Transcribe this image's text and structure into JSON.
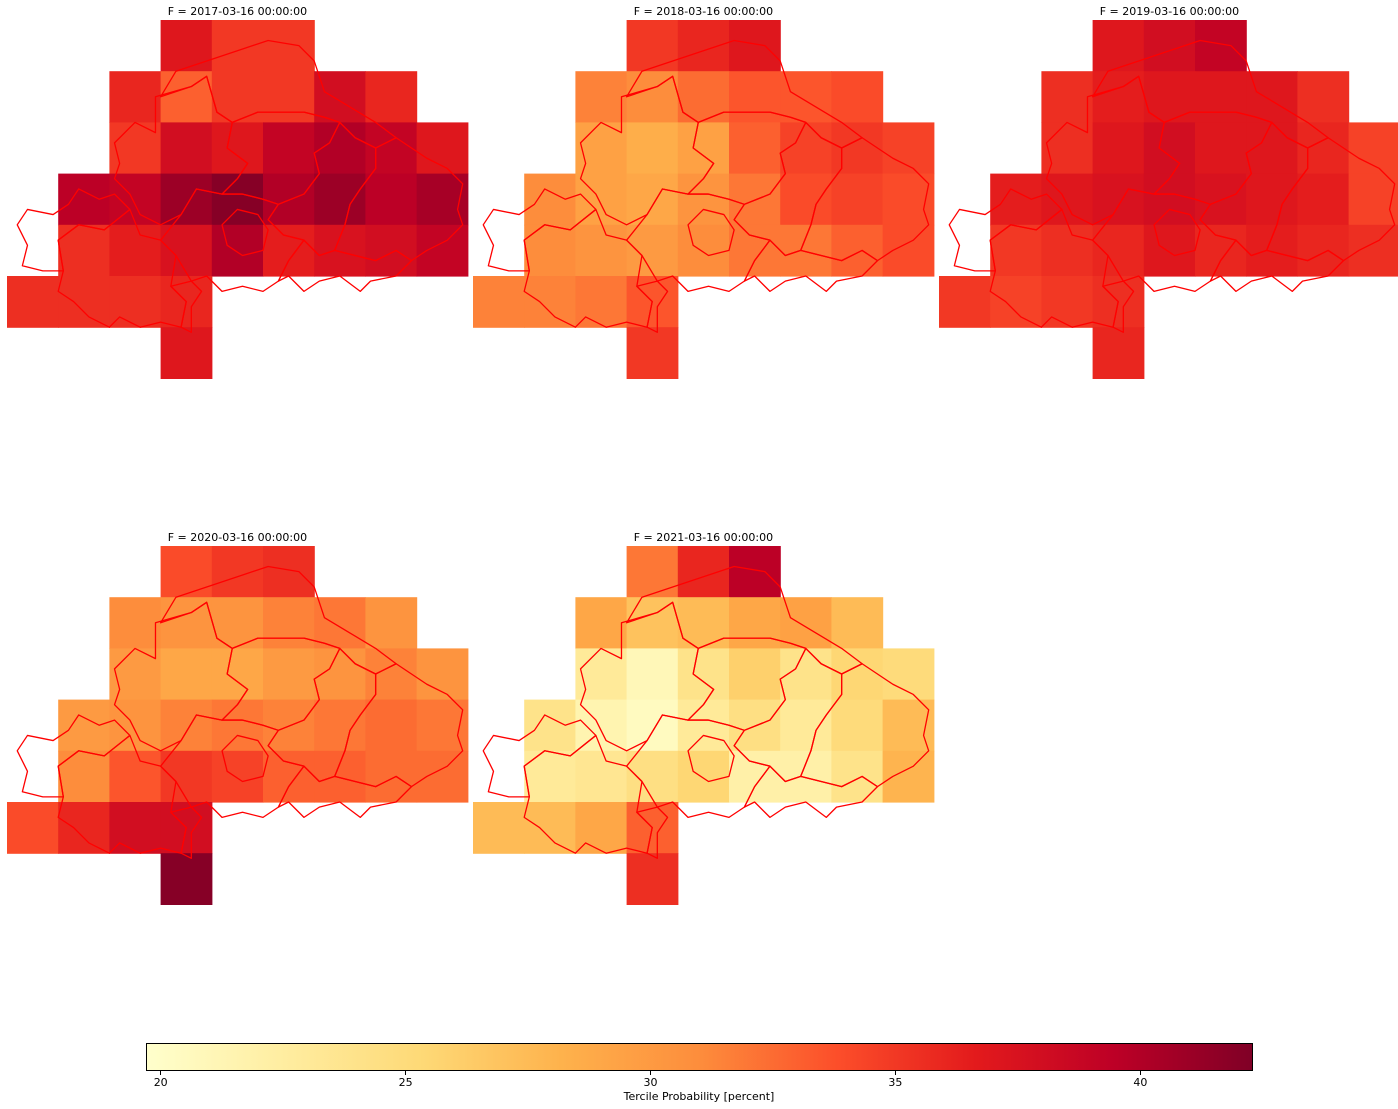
{
  "panels": [
    {
      "title": "F = 2017-03-16 00:00:00",
      "grid": [
        [
          null,
          null,
          null,
          37.0,
          35.0,
          35.0,
          null,
          null,
          null
        ],
        [
          null,
          null,
          36.0,
          33.0,
          35.0,
          35.0,
          38.0,
          36.0,
          null
        ],
        [
          null,
          null,
          35.0,
          38.0,
          37.0,
          39.0,
          40.0,
          39.0,
          37.0
        ],
        [
          null,
          39.5,
          39.0,
          41.0,
          42.0,
          40.0,
          41.0,
          39.5,
          40.5
        ],
        [
          null,
          35.5,
          36.5,
          37.5,
          40.0,
          36.5,
          37.5,
          38.0,
          39.0
        ],
        [
          35.5,
          35.5,
          35.5,
          36.0,
          null,
          null,
          null,
          null,
          null
        ],
        [
          null,
          null,
          null,
          37.0,
          null,
          null,
          null,
          null,
          null
        ]
      ]
    },
    {
      "title": "F = 2018-03-16 00:00:00",
      "grid": [
        [
          null,
          null,
          null,
          35.0,
          36.0,
          37.0,
          null,
          null,
          null
        ],
        [
          null,
          null,
          31.5,
          31.0,
          32.5,
          33.5,
          33.5,
          34.0,
          null
        ],
        [
          null,
          null,
          29.5,
          28.5,
          29.5,
          33.0,
          34.5,
          35.0,
          34.5
        ],
        [
          null,
          31.0,
          29.5,
          29.0,
          30.5,
          32.0,
          34.0,
          34.5,
          34.0
        ],
        [
          null,
          31.0,
          30.5,
          30.0,
          31.0,
          32.0,
          32.0,
          33.0,
          34.0
        ],
        [
          31.5,
          31.5,
          32.0,
          33.5,
          null,
          null,
          null,
          null,
          null
        ],
        [
          null,
          null,
          null,
          35.0,
          null,
          null,
          null,
          null,
          null
        ]
      ]
    },
    {
      "title": "F = 2019-03-16 00:00:00",
      "grid": [
        [
          null,
          null,
          null,
          37.0,
          38.0,
          39.0,
          null,
          null,
          null
        ],
        [
          null,
          null,
          35.5,
          36.5,
          37.0,
          37.0,
          37.0,
          35.5,
          null
        ],
        [
          null,
          null,
          35.5,
          37.0,
          38.0,
          37.0,
          37.0,
          36.0,
          34.5
        ],
        [
          null,
          36.5,
          37.0,
          37.5,
          38.0,
          37.5,
          37.0,
          36.5,
          34.5
        ],
        [
          null,
          35.0,
          35.5,
          36.0,
          37.0,
          36.0,
          36.5,
          36.0,
          35.5
        ],
        [
          35.0,
          34.5,
          35.0,
          35.5,
          null,
          null,
          null,
          null,
          null
        ],
        [
          null,
          null,
          null,
          36.0,
          null,
          null,
          null,
          null,
          null
        ]
      ]
    },
    {
      "title": "F = 2020-03-16 00:00:00",
      "grid": [
        [
          null,
          null,
          null,
          34.0,
          35.0,
          35.5,
          null,
          null,
          null
        ],
        [
          null,
          null,
          31.0,
          30.5,
          30.5,
          31.5,
          32.0,
          30.5,
          null
        ],
        [
          null,
          null,
          30.0,
          29.0,
          29.0,
          30.0,
          30.5,
          31.5,
          30.5
        ],
        [
          null,
          30.0,
          30.5,
          31.5,
          32.0,
          31.5,
          32.0,
          32.5,
          32.0
        ],
        [
          null,
          31.0,
          33.5,
          35.0,
          34.5,
          33.0,
          33.0,
          32.5,
          32.5
        ],
        [
          34.0,
          36.0,
          38.0,
          38.0,
          null,
          null,
          null,
          null,
          null
        ],
        [
          null,
          null,
          null,
          42.0,
          null,
          null,
          null,
          null,
          null
        ]
      ]
    },
    {
      "title": "F = 2021-03-16 00:00:00",
      "grid": [
        [
          null,
          null,
          null,
          32.0,
          36.0,
          39.5,
          null,
          null,
          null
        ],
        [
          null,
          null,
          29.0,
          27.0,
          27.5,
          29.0,
          29.5,
          27.5,
          null
        ],
        [
          null,
          null,
          23.0,
          21.0,
          24.0,
          26.0,
          24.0,
          25.5,
          25.0
        ],
        [
          null,
          24.0,
          21.5,
          20.5,
          23.0,
          24.5,
          23.0,
          25.0,
          27.5
        ],
        [
          null,
          23.0,
          23.5,
          24.5,
          25.5,
          22.0,
          22.0,
          24.0,
          28.0
        ],
        [
          27.5,
          27.5,
          29.0,
          33.0,
          null,
          null,
          null,
          null,
          null
        ],
        [
          null,
          null,
          null,
          35.5,
          null,
          null,
          null,
          null,
          null
        ]
      ]
    }
  ],
  "colorbar": {
    "min": 19.7,
    "max": 42.3,
    "ticks": [
      20,
      25,
      30,
      35,
      40
    ],
    "label": "Tercile Probability [percent]",
    "colormap": "YlOrRd"
  },
  "boundary_color": "#ff0000"
}
